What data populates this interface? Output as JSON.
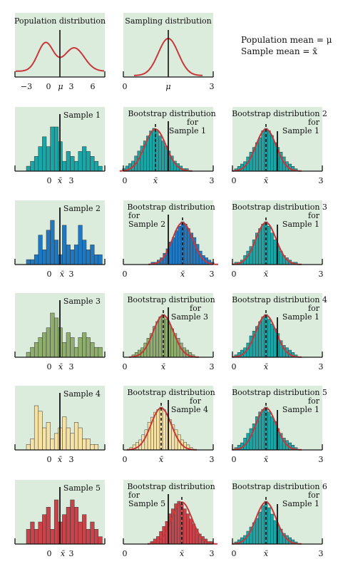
{
  "legend": {
    "population_mean": "Population mean = μ",
    "sample_mean": "Sample mean = x̄"
  },
  "colors": {
    "panel_bg": "#dcecdc",
    "curve": "#c8373a",
    "sample1": "#1aa6a6",
    "sample2": "#1f78c0",
    "sample3": "#8fae6e",
    "sample4": "#f6e2a4",
    "sample5": "#c9444a",
    "teal": "#1aa6a6"
  },
  "top": {
    "population": {
      "title": "Population distribution",
      "ticks": [
        "−3",
        "0",
        "μ",
        "3",
        "6"
      ]
    },
    "sampling": {
      "title": "Sampling distribution",
      "ticks": [
        "0",
        "μ",
        "3"
      ]
    }
  },
  "rows": [
    {
      "sample_label": "Sample 1",
      "color_key": "sample1",
      "sample_ticks": [
        "0",
        "x̄",
        "3"
      ],
      "boot": {
        "title": "Bootstrap distribution for Sample 1",
        "ticks": [
          "0",
          "x̄",
          "3"
        ]
      },
      "boot_teal": {
        "title": "Bootstrap distribution 2 for Sample 1",
        "ticks": [
          "0",
          "x̄",
          "3"
        ]
      },
      "sample_hist": [
        1,
        2,
        3,
        5,
        7,
        5,
        9,
        9,
        6,
        2,
        4,
        3,
        2,
        4,
        5,
        4,
        3,
        2,
        1
      ]
    },
    {
      "sample_label": "Sample 2",
      "color_key": "sample2",
      "sample_ticks": [
        "0",
        "x̄",
        "3"
      ],
      "boot": {
        "title": "Bootstrap distribution for Sample 2",
        "ticks": [
          "0",
          "x̄",
          "3"
        ]
      },
      "boot_teal": {
        "title": "Bootstrap distribution 3 for Sample 1",
        "ticks": [
          "0",
          "x̄",
          "3"
        ]
      },
      "sample_hist": [
        1,
        1,
        2,
        6,
        3,
        7,
        9,
        5,
        2,
        8,
        4,
        3,
        4,
        8,
        5,
        3,
        4,
        2,
        2
      ]
    },
    {
      "sample_label": "Sample 3",
      "color_key": "sample3",
      "sample_ticks": [
        "0",
        "x̄",
        "3"
      ],
      "boot": {
        "title": "Bootstrap distribution for Sample 3",
        "ticks": [
          "0",
          "x̄",
          "3"
        ]
      },
      "boot_teal": {
        "title": "Bootstrap distribution 4 for Sample 1",
        "ticks": [
          "0",
          "x̄",
          "3"
        ]
      },
      "sample_hist": [
        1,
        2,
        3,
        4,
        5,
        6,
        9,
        8,
        6,
        3,
        5,
        4,
        2,
        4,
        5,
        4,
        3,
        2,
        2
      ]
    },
    {
      "sample_label": "Sample 4",
      "color_key": "sample4",
      "sample_ticks": [
        "0",
        "x̄",
        "3"
      ],
      "boot": {
        "title": "Bootstrap distribution for Sample 4",
        "ticks": [
          "0",
          "x̄",
          "3"
        ]
      },
      "boot_teal": {
        "title": "Bootstrap distribution 5 for Sample 1",
        "ticks": [
          "0",
          "x̄",
          "3"
        ]
      },
      "sample_hist": [
        1,
        2,
        8,
        7,
        4,
        5,
        2,
        3,
        4,
        6,
        4,
        3,
        5,
        4,
        2,
        2,
        1,
        1
      ]
    },
    {
      "sample_label": "Sample 5",
      "color_key": "sample5",
      "sample_ticks": [
        "0",
        "x̄",
        "3"
      ],
      "boot": {
        "title": "Bootstrap distribution for Sample 5",
        "ticks": [
          "0",
          "x̄",
          "3"
        ]
      },
      "boot_teal": {
        "title": "Bootstrap distribution 6 for Sample 1",
        "ticks": [
          "0",
          "x̄",
          "3"
        ]
      },
      "sample_hist": [
        2,
        3,
        2,
        3,
        4,
        5,
        2,
        6,
        3,
        4,
        5,
        6,
        5,
        3,
        4,
        2,
        3,
        2,
        1
      ]
    }
  ],
  "boot_hists": {
    "b1": [
      1,
      2,
      3,
      4,
      6,
      8,
      10,
      12,
      14,
      16,
      17,
      16,
      14,
      12,
      10,
      8,
      6,
      4,
      3,
      2,
      1,
      1
    ],
    "b2": [
      1,
      1,
      2,
      3,
      5,
      7,
      10,
      12,
      15,
      17,
      19,
      18,
      16,
      14,
      12,
      9,
      6,
      4,
      3,
      2,
      1
    ],
    "b3": [
      1,
      2,
      3,
      4,
      6,
      8,
      10,
      13,
      15,
      17,
      18,
      16,
      14,
      12,
      10,
      8,
      6,
      4,
      3,
      2,
      1
    ],
    "b4": [
      1,
      2,
      3,
      4,
      6,
      8,
      11,
      13,
      15,
      16,
      17,
      16,
      14,
      12,
      10,
      8,
      6,
      4,
      3,
      2,
      1
    ],
    "b5": [
      1,
      2,
      3,
      5,
      7,
      9,
      12,
      14,
      16,
      17,
      16,
      14,
      12,
      10,
      8,
      6,
      4,
      3,
      2,
      1,
      1
    ]
  },
  "teal_hists": {
    "t1": [
      1,
      2,
      3,
      4,
      6,
      8,
      10,
      12,
      14,
      17,
      18,
      17,
      15,
      12,
      10,
      8,
      6,
      4,
      3,
      2,
      1
    ],
    "t2": [
      1,
      1,
      2,
      4,
      6,
      8,
      11,
      14,
      16,
      18,
      19,
      17,
      14,
      11,
      8,
      6,
      4,
      3,
      2,
      1,
      1
    ],
    "t3": [
      1,
      2,
      3,
      4,
      6,
      9,
      11,
      13,
      15,
      17,
      18,
      16,
      14,
      12,
      10,
      7,
      5,
      4,
      3,
      2,
      1
    ],
    "t4": [
      1,
      2,
      3,
      5,
      7,
      9,
      11,
      14,
      16,
      17,
      18,
      16,
      14,
      12,
      9,
      7,
      5,
      4,
      3,
      2,
      1
    ],
    "t5": [
      1,
      2,
      3,
      4,
      6,
      8,
      10,
      12,
      15,
      18,
      20,
      17,
      14,
      11,
      9,
      7,
      5,
      4,
      3,
      2,
      1
    ]
  }
}
